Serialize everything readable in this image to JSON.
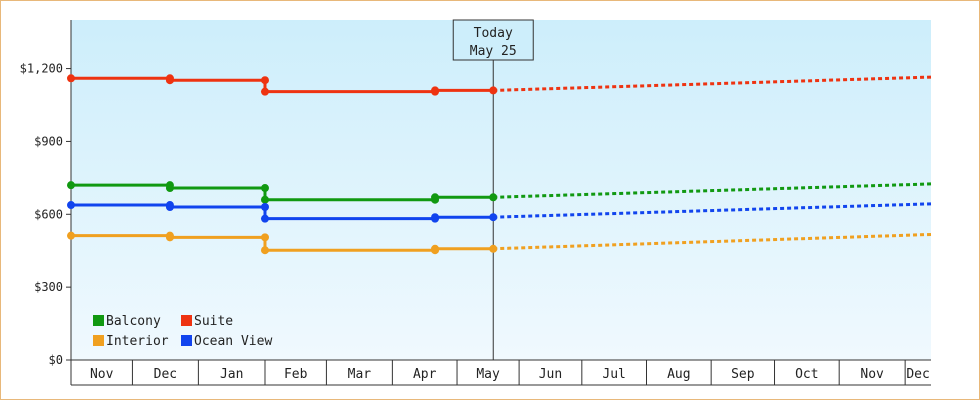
{
  "chart_data": {
    "type": "line",
    "y_ticks": [
      {
        "value": 0,
        "label": "$0"
      },
      {
        "value": 300,
        "label": "$300"
      },
      {
        "value": 600,
        "label": "$600"
      },
      {
        "value": 900,
        "label": "$900"
      },
      {
        "value": 1200,
        "label": "$1,200"
      }
    ],
    "ylim": [
      0,
      1400
    ],
    "months": [
      "Nov",
      "Dec",
      "Jan",
      "Feb",
      "Mar",
      "Apr",
      "May",
      "Jun",
      "Jul",
      "Aug",
      "Sep",
      "Oct",
      "Nov",
      "Dec"
    ],
    "month_bounds": [
      0,
      0.95,
      1.97,
      3.0,
      3.95,
      4.97,
      5.97,
      6.93,
      7.9,
      8.9,
      9.9,
      10.88,
      11.88,
      12.9,
      13.3
    ],
    "today": {
      "line1": "Today",
      "line2": "May 25",
      "x": 6.53
    },
    "series": [
      {
        "name": "Balcony",
        "color": "#119911",
        "historical": [
          [
            0,
            720
          ],
          [
            1.53,
            720
          ],
          [
            1.53,
            708
          ],
          [
            3.0,
            708
          ],
          [
            3.0,
            660
          ],
          [
            5.63,
            660
          ],
          [
            5.63,
            670
          ],
          [
            6.53,
            670
          ]
        ],
        "points": [
          [
            0,
            720
          ],
          [
            1.53,
            720
          ],
          [
            1.53,
            708
          ],
          [
            3.0,
            708
          ],
          [
            3.0,
            660
          ],
          [
            5.63,
            660
          ],
          [
            5.63,
            670
          ],
          [
            6.53,
            670
          ]
        ],
        "forecast": [
          [
            6.53,
            670
          ],
          [
            13.3,
            725
          ]
        ]
      },
      {
        "name": "Suite",
        "color": "#ee3311",
        "historical": [
          [
            0,
            1160
          ],
          [
            1.53,
            1160
          ],
          [
            1.53,
            1152
          ],
          [
            3.0,
            1152
          ],
          [
            3.0,
            1105
          ],
          [
            5.63,
            1105
          ],
          [
            5.63,
            1110
          ],
          [
            6.53,
            1110
          ]
        ],
        "points": [
          [
            0,
            1160
          ],
          [
            1.53,
            1160
          ],
          [
            1.53,
            1152
          ],
          [
            3.0,
            1152
          ],
          [
            3.0,
            1105
          ],
          [
            5.63,
            1105
          ],
          [
            5.63,
            1110
          ],
          [
            6.53,
            1110
          ]
        ],
        "forecast": [
          [
            6.53,
            1110
          ],
          [
            13.3,
            1165
          ]
        ]
      },
      {
        "name": "Interior",
        "color": "#f0a020",
        "historical": [
          [
            0,
            512
          ],
          [
            1.53,
            512
          ],
          [
            1.53,
            505
          ],
          [
            3.0,
            505
          ],
          [
            3.0,
            452
          ],
          [
            5.63,
            452
          ],
          [
            5.63,
            458
          ],
          [
            6.53,
            458
          ]
        ],
        "points": [
          [
            0,
            512
          ],
          [
            1.53,
            512
          ],
          [
            1.53,
            505
          ],
          [
            3.0,
            505
          ],
          [
            3.0,
            452
          ],
          [
            5.63,
            452
          ],
          [
            5.63,
            458
          ],
          [
            6.53,
            458
          ]
        ],
        "forecast": [
          [
            6.53,
            458
          ],
          [
            13.3,
            517
          ]
        ]
      },
      {
        "name": "Ocean View",
        "color": "#1144ee",
        "historical": [
          [
            0,
            638
          ],
          [
            1.53,
            638
          ],
          [
            1.53,
            630
          ],
          [
            3.0,
            630
          ],
          [
            3.0,
            582
          ],
          [
            5.63,
            582
          ],
          [
            5.63,
            588
          ],
          [
            6.53,
            588
          ]
        ],
        "points": [
          [
            0,
            638
          ],
          [
            1.53,
            638
          ],
          [
            1.53,
            630
          ],
          [
            3.0,
            630
          ],
          [
            3.0,
            582
          ],
          [
            5.63,
            582
          ],
          [
            5.63,
            588
          ],
          [
            6.53,
            588
          ]
        ],
        "forecast": [
          [
            6.53,
            588
          ],
          [
            13.3,
            643
          ]
        ]
      }
    ],
    "legend": {
      "placement": "bottom-left",
      "items": [
        {
          "name": "Balcony",
          "color": "#119911"
        },
        {
          "name": "Suite",
          "color": "#ee3311"
        },
        {
          "name": "Interior",
          "color": "#f0a020"
        },
        {
          "name": "Ocean View",
          "color": "#1144ee"
        }
      ]
    },
    "colors": {
      "plot_bg_top": "#cdeefb",
      "plot_bg_bottom": "#f0f9fe",
      "frame_border": "#e8b87a",
      "axis": "#333333"
    }
  }
}
